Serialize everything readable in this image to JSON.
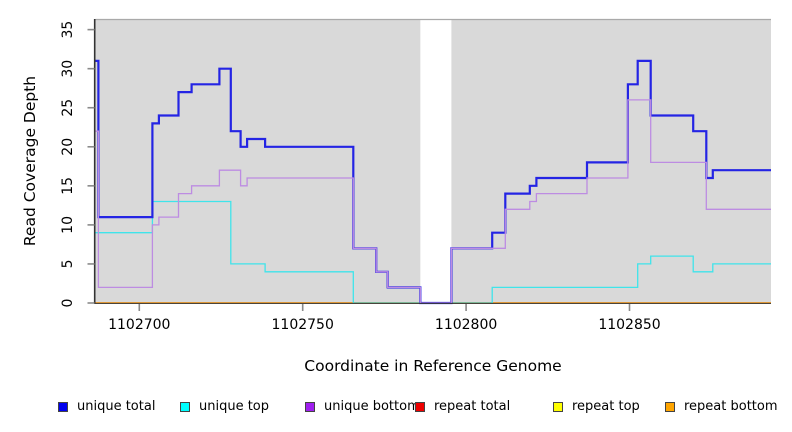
{
  "chart_data": {
    "type": "line",
    "subtype": "step",
    "title": "",
    "xlabel": "Coordinate in Reference Genome",
    "ylabel": "Read Coverage Depth",
    "xlim": [
      1102686.6,
      1102893.3
    ],
    "ylim": [
      0,
      36.36
    ],
    "xticks": [
      1102700,
      1102750,
      1102800,
      1102850
    ],
    "yticks": [
      0,
      5,
      10,
      15,
      20,
      25,
      30,
      35
    ],
    "grid": false,
    "plot_background": "#d9d9d9",
    "gap_region": {
      "start": 1102786,
      "end": 1102795.5,
      "color": "#ffffff"
    },
    "axis_color": "#333333",
    "tick_color": "#8a8a8a",
    "top_border_color": "#a9a9a9",
    "legend_position": "bottom",
    "series": [
      {
        "name": "repeat total",
        "color": "#ee0000",
        "line_color": "#ee2222",
        "line_width": 1.2,
        "points": [
          [
            1102686.6,
            0
          ]
        ]
      },
      {
        "name": "repeat top",
        "color": "#ffff00",
        "line_color": "#f2e500",
        "line_width": 1.2,
        "points": [
          [
            1102686.6,
            0
          ]
        ]
      },
      {
        "name": "repeat bottom",
        "color": "#ffa500",
        "line_color": "#ff9f1e",
        "line_width": 1.6,
        "points": [
          [
            1102686.6,
            0
          ]
        ]
      },
      {
        "name": "unique top",
        "color": "#00ffff",
        "line_color": "#3fe4ea",
        "line_width": 1.3,
        "points": [
          [
            1102686.6,
            9
          ],
          [
            1102704,
            13
          ],
          [
            1102728,
            5
          ],
          [
            1102738.5,
            4
          ],
          [
            1102765.5,
            0
          ],
          [
            1102808,
            2
          ],
          [
            1102852.5,
            5
          ],
          [
            1102856.5,
            6
          ],
          [
            1102869.5,
            4
          ],
          [
            1102875.5,
            5
          ]
        ]
      },
      {
        "name": "unique total",
        "color": "#0000ee",
        "line_color": "#2424e4",
        "line_width": 2.2,
        "points": [
          [
            1102686.6,
            31
          ],
          [
            1102687.5,
            11
          ],
          [
            1102704,
            23
          ],
          [
            1102706,
            24
          ],
          [
            1102712,
            27
          ],
          [
            1102716,
            28
          ],
          [
            1102724.5,
            30
          ],
          [
            1102728,
            22
          ],
          [
            1102731,
            20
          ],
          [
            1102733,
            21
          ],
          [
            1102738.5,
            20
          ],
          [
            1102765.5,
            7
          ],
          [
            1102772.5,
            4
          ],
          [
            1102776,
            2
          ],
          [
            1102786,
            0
          ],
          [
            1102795.5,
            7
          ],
          [
            1102808,
            9
          ],
          [
            1102812,
            14
          ],
          [
            1102819.5,
            15
          ],
          [
            1102821.5,
            16
          ],
          [
            1102837,
            18
          ],
          [
            1102849.5,
            28
          ],
          [
            1102852.5,
            31
          ],
          [
            1102856.5,
            24
          ],
          [
            1102869.5,
            22
          ],
          [
            1102873.5,
            16
          ],
          [
            1102875.5,
            17
          ]
        ]
      },
      {
        "name": "unique bottom",
        "color": "#a020f0",
        "line_color": "#bd8ce2",
        "line_width": 1.3,
        "points": [
          [
            1102686.6,
            22
          ],
          [
            1102687.5,
            2
          ],
          [
            1102704,
            10
          ],
          [
            1102706,
            11
          ],
          [
            1102712,
            14
          ],
          [
            1102716,
            15
          ],
          [
            1102724.5,
            17
          ],
          [
            1102731,
            15
          ],
          [
            1102733,
            16
          ],
          [
            1102765.5,
            7
          ],
          [
            1102772.5,
            4
          ],
          [
            1102776,
            2
          ],
          [
            1102786,
            0
          ],
          [
            1102795.5,
            7
          ],
          [
            1102812,
            12
          ],
          [
            1102819.5,
            13
          ],
          [
            1102821.5,
            14
          ],
          [
            1102837,
            16
          ],
          [
            1102849.5,
            26
          ],
          [
            1102856.5,
            18
          ],
          [
            1102873.5,
            12
          ]
        ]
      }
    ],
    "legend": [
      {
        "label": "unique total",
        "color": "#0000ee"
      },
      {
        "label": "unique top",
        "color": "#00ffff"
      },
      {
        "label": "unique bottom",
        "color": "#a020f0"
      },
      {
        "label": "repeat total",
        "color": "#ee0000"
      },
      {
        "label": "repeat top",
        "color": "#ffff00"
      },
      {
        "label": "repeat bottom",
        "color": "#ffa500"
      }
    ]
  }
}
